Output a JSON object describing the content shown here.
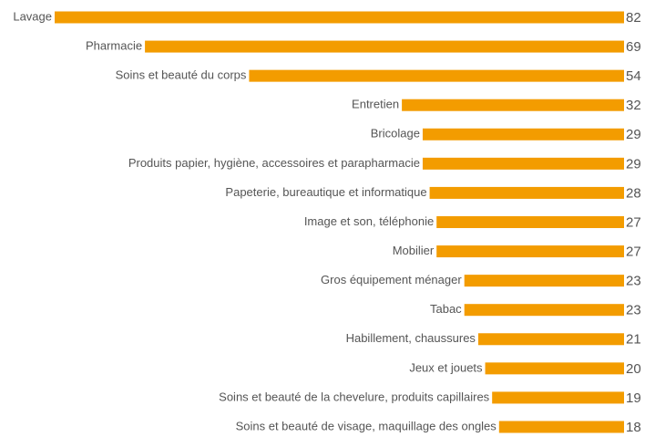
{
  "chart_data": {
    "type": "bar",
    "orientation": "horizontal",
    "color": "#f39c00",
    "categories": [
      "Lavage",
      "Pharmacie",
      "Soins et beauté du corps",
      "Entretien",
      "Bricolage",
      "Produits papier, hygiène, accessoires et parapharmacie",
      "Papeterie, bureautique et informatique",
      "Image et son, téléphonie",
      "Mobilier",
      "Gros équipement ménager",
      "Tabac",
      "Habillement, chaussures",
      "Jeux et jouets",
      "Soins et beauté de la chevelure, produits capillaires",
      "Soins et beauté de visage, maquillage des ongles"
    ],
    "values": [
      82,
      69,
      54,
      32,
      29,
      29,
      28,
      27,
      27,
      23,
      23,
      21,
      20,
      19,
      18
    ]
  }
}
